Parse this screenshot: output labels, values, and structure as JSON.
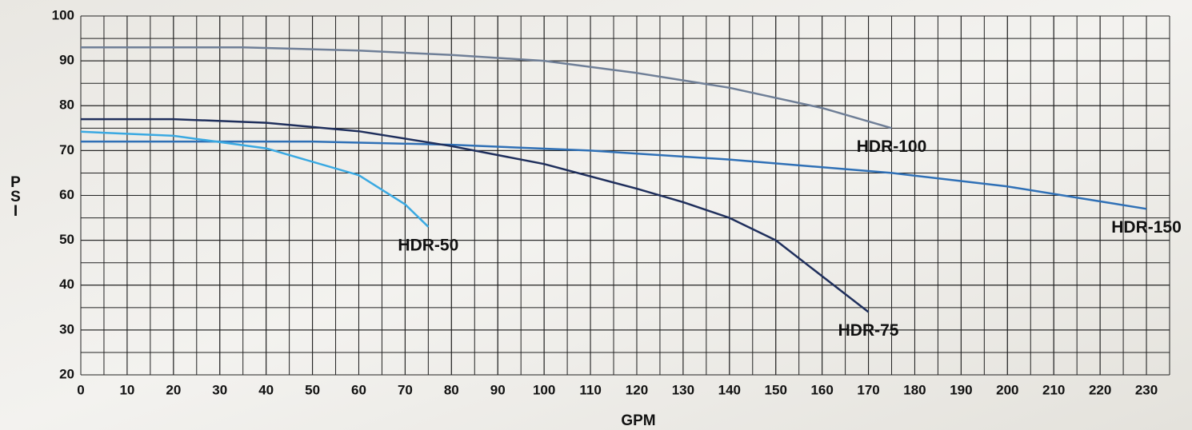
{
  "chart_data": {
    "type": "line",
    "x_label": "GPM",
    "y_label": "PSI",
    "xlim": [
      0,
      235
    ],
    "ylim": [
      20,
      100
    ],
    "xticks": [
      0,
      10,
      20,
      30,
      40,
      50,
      60,
      70,
      80,
      90,
      100,
      110,
      120,
      130,
      140,
      150,
      160,
      170,
      180,
      190,
      200,
      210,
      220,
      230
    ],
    "yticks": [
      20,
      30,
      40,
      50,
      60,
      70,
      80,
      90,
      100
    ],
    "grid": true,
    "grid_step": 5,
    "series": [
      {
        "name": "HDR-100",
        "color": "#6f7f97",
        "x": [
          0,
          35,
          60,
          80,
          100,
          120,
          140,
          160,
          175
        ],
        "values": [
          93,
          93,
          92.3,
          91.3,
          90,
          87.3,
          84,
          79.5,
          75
        ]
      },
      {
        "name": "HDR-150",
        "color": "#2f70b6",
        "x": [
          0,
          50,
          80,
          110,
          140,
          175,
          200,
          230
        ],
        "values": [
          72,
          72,
          71.3,
          70,
          68,
          65,
          62,
          57
        ]
      },
      {
        "name": "HDR-75",
        "color": "#1f2f5c",
        "x": [
          0,
          20,
          40,
          60,
          80,
          100,
          120,
          130,
          140,
          150,
          160,
          170
        ],
        "values": [
          77,
          77,
          76.2,
          74.3,
          71,
          67,
          61.5,
          58.5,
          55,
          50,
          42,
          34
        ]
      },
      {
        "name": "HDR-50",
        "color": "#3aa9e2",
        "x": [
          0,
          20,
          40,
          60,
          70,
          75
        ],
        "values": [
          74.2,
          73.3,
          70.5,
          64.5,
          58,
          53
        ]
      }
    ]
  }
}
